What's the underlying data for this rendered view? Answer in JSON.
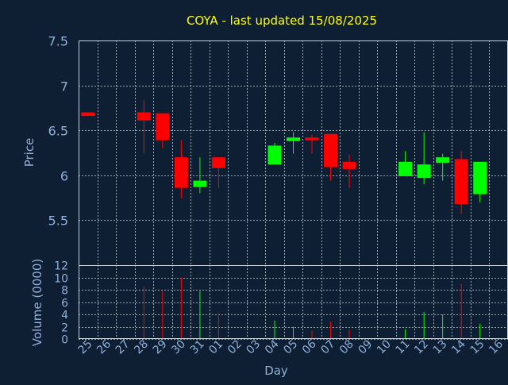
{
  "title": "COYA - last updated 15/08/2025",
  "colors": {
    "background": "#0f1f33",
    "up": "#00ff00",
    "down": "#ff0000",
    "title": "#ffff00",
    "axis_text": "#8fb0d8",
    "grid": "#c8d0da"
  },
  "chart_data": [
    {
      "type": "candlestick",
      "ylabel": "Price",
      "ylim": [
        5.0,
        7.5
      ],
      "yticks": [
        "7.5",
        "7",
        "6.5",
        "6",
        "5.5"
      ],
      "grid": true,
      "categories": [
        "25",
        "26",
        "27",
        "28",
        "29",
        "30",
        "31",
        "01",
        "02",
        "03",
        "04",
        "05",
        "06",
        "07",
        "08",
        "09",
        "10",
        "11",
        "12",
        "13",
        "14",
        "15",
        "16"
      ],
      "candles": [
        {
          "day": "25",
          "open": 6.7,
          "close": 6.66,
          "high": 6.7,
          "low": 6.66
        },
        {
          "day": "28",
          "open": 6.7,
          "close": 6.61,
          "high": 6.84,
          "low": 6.25
        },
        {
          "day": "29",
          "open": 6.69,
          "close": 6.39,
          "high": 6.69,
          "low": 6.3
        },
        {
          "day": "30",
          "open": 6.2,
          "close": 5.86,
          "high": 6.39,
          "low": 5.74
        },
        {
          "day": "31",
          "open": 5.87,
          "close": 5.94,
          "high": 6.2,
          "low": 5.8
        },
        {
          "day": "01",
          "open": 6.2,
          "close": 6.08,
          "high": 6.2,
          "low": 5.86
        },
        {
          "day": "04",
          "open": 6.12,
          "close": 6.33,
          "high": 6.36,
          "low": 6.12
        },
        {
          "day": "05",
          "open": 6.38,
          "close": 6.42,
          "high": 6.48,
          "low": 6.24
        },
        {
          "day": "06",
          "open": 6.42,
          "close": 6.39,
          "high": 6.45,
          "low": 6.24
        },
        {
          "day": "07",
          "open": 6.46,
          "close": 6.09,
          "high": 6.46,
          "low": 5.94
        },
        {
          "day": "08",
          "open": 6.15,
          "close": 6.07,
          "high": 6.23,
          "low": 5.86
        },
        {
          "day": "11",
          "open": 5.99,
          "close": 6.15,
          "high": 6.27,
          "low": 5.99
        },
        {
          "day": "12",
          "open": 5.97,
          "close": 6.12,
          "high": 6.48,
          "low": 5.9
        },
        {
          "day": "13",
          "open": 6.14,
          "close": 6.2,
          "high": 6.24,
          "low": 5.94
        },
        {
          "day": "14",
          "open": 6.18,
          "close": 5.68,
          "high": 6.27,
          "low": 5.57
        },
        {
          "day": "15",
          "open": 5.79,
          "close": 6.15,
          "high": 6.15,
          "low": 5.7
        }
      ]
    },
    {
      "type": "bar",
      "ylabel": "Volume (0000)",
      "xlabel": "Day",
      "ylim": [
        0,
        12
      ],
      "yticks": [
        "12",
        "10",
        "8",
        "6",
        "4",
        "2",
        "0"
      ],
      "grid": true,
      "bars": [
        {
          "day": "28",
          "value": 8.5,
          "direction": "down"
        },
        {
          "day": "29",
          "value": 7.8,
          "direction": "down"
        },
        {
          "day": "30",
          "value": 10.0,
          "direction": "down"
        },
        {
          "day": "31",
          "value": 7.8,
          "direction": "up"
        },
        {
          "day": "01",
          "value": 4.2,
          "direction": "down"
        },
        {
          "day": "04",
          "value": 3.0,
          "direction": "up"
        },
        {
          "day": "05",
          "value": 2.0,
          "direction": "up"
        },
        {
          "day": "06",
          "value": 1.3,
          "direction": "down"
        },
        {
          "day": "07",
          "value": 2.8,
          "direction": "down"
        },
        {
          "day": "08",
          "value": 1.5,
          "direction": "down"
        },
        {
          "day": "11",
          "value": 1.6,
          "direction": "up"
        },
        {
          "day": "12",
          "value": 4.4,
          "direction": "up"
        },
        {
          "day": "13",
          "value": 4.0,
          "direction": "up"
        },
        {
          "day": "14",
          "value": 9.0,
          "direction": "down"
        },
        {
          "day": "15",
          "value": 2.5,
          "direction": "up"
        }
      ]
    }
  ]
}
